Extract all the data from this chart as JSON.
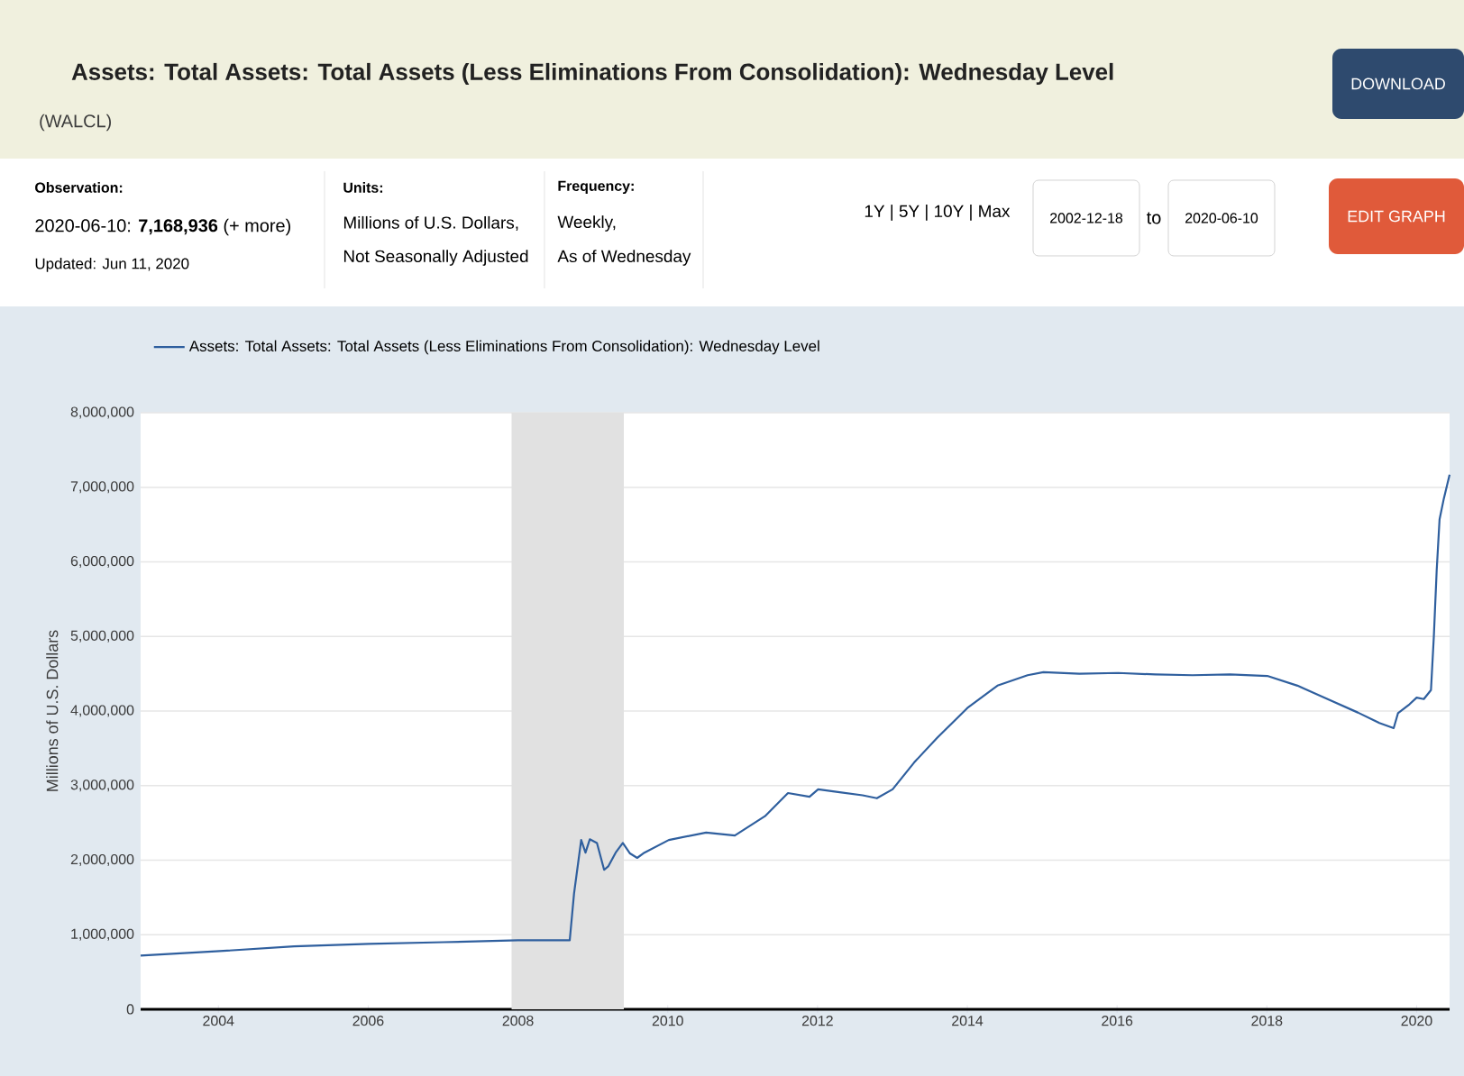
{
  "chart_data": {
    "type": "line",
    "title": "Assets: Total Assets: Total Assets (Less Eliminations From Consolidation): Wednesday Level",
    "subtitle": "(WALCL)",
    "ylabel": "Millions of U.S. Dollars",
    "annotations": [
      "Observation:",
      "2020-06-10: **7,168,936** (+ more)",
      "Updated: Jun 11, 2020",
      "Units:",
      "Millions of U.S. Dollars,",
      "Not Seasonally Adjusted",
      "Frequency:",
      "Weekly,",
      "As of Wednesday",
      "1Y | 5Y | 10Y | Max",
      "2002-12-18",
      "to",
      "2020-06-10",
      "DOWNLOAD",
      "EDIT GRAPH"
    ],
    "x": [
      "2002-12-18",
      "2004-01-07",
      "2005-01-05",
      "2006-01-04",
      "2007-01-03",
      "2008-01-02",
      "2008-09-10",
      "2008-10-01",
      "2008-11-05",
      "2008-11-26",
      "2008-12-17",
      "2009-01-21",
      "2009-02-25",
      "2009-03-18",
      "2009-04-22",
      "2009-05-27",
      "2009-07-01",
      "2009-08-05",
      "2009-09-09",
      "2010-01-06",
      "2010-07-07",
      "2010-11-24",
      "2011-04-20",
      "2011-08-10",
      "2011-11-23",
      "2012-01-04",
      "2012-04-18",
      "2012-08-08",
      "2012-10-17",
      "2013-01-02",
      "2013-04-17",
      "2013-08-07",
      "2014-01-01",
      "2014-05-28",
      "2014-10-22",
      "2015-01-07",
      "2015-07-01",
      "2016-01-06",
      "2016-07-06",
      "2017-01-04",
      "2017-07-05",
      "2018-01-03",
      "2018-05-30",
      "2018-10-24",
      "2019-03-20",
      "2019-07-03",
      "2019-09-11",
      "2019-10-02",
      "2019-11-27",
      "2020-01-01",
      "2020-02-05",
      "2020-03-11",
      "2020-03-25",
      "2020-04-08",
      "2020-04-22",
      "2020-05-13",
      "2020-06-10"
    ],
    "series": [
      {
        "name": "Assets: Total Assets: Total Assets (Less Eliminations From Consolidation): Wednesday Level",
        "color": "#2f5f9e",
        "values": [
          720000,
          780000,
          845000,
          877000,
          900000,
          925000,
          925000,
          1550000,
          2270000,
          2100000,
          2280000,
          2230000,
          1870000,
          1920000,
          2100000,
          2230000,
          2090000,
          2030000,
          2100000,
          2270000,
          2370000,
          2330000,
          2590000,
          2900000,
          2850000,
          2950000,
          2910000,
          2870000,
          2830000,
          2950000,
          3310000,
          3640000,
          4040000,
          4340000,
          4480000,
          4520000,
          4500000,
          4510000,
          4490000,
          4480000,
          4490000,
          4470000,
          4340000,
          4160000,
          3980000,
          3840000,
          3770000,
          3970000,
          4090000,
          4180000,
          4160000,
          4280000,
          5000000,
          5890000,
          6570000,
          6850000,
          7168936
        ]
      }
    ],
    "xlim": [
      "2002-12-18",
      "2020-06-10"
    ],
    "xticks": [
      "2004",
      "2006",
      "2008",
      "2010",
      "2012",
      "2014",
      "2016",
      "2018",
      "2020"
    ],
    "ylim": [
      0,
      8000000
    ],
    "yticks": [
      0,
      {
        "value": 1000000,
        "label": "1,000,000"
      },
      {
        "value": 2000000,
        "label": "2,000,000"
      },
      {
        "value": 3000000,
        "label": "3,000,000"
      },
      {
        "value": 4000000,
        "label": "4,000,000"
      },
      {
        "value": 5000000,
        "label": "5,000,000"
      },
      {
        "value": 6000000,
        "label": "6,000,000"
      },
      {
        "value": 7000000,
        "label": "7,000,000"
      },
      {
        "value": 8000000,
        "label": "8,000,000"
      }
    ],
    "bands": [
      {
        "axis": "x",
        "from": "2007-12",
        "to": "2009-06",
        "color": "#e1e1e1"
      }
    ],
    "grid": "y",
    "legend": "top left",
    "line_style": "solid",
    "marker": "none"
  }
}
